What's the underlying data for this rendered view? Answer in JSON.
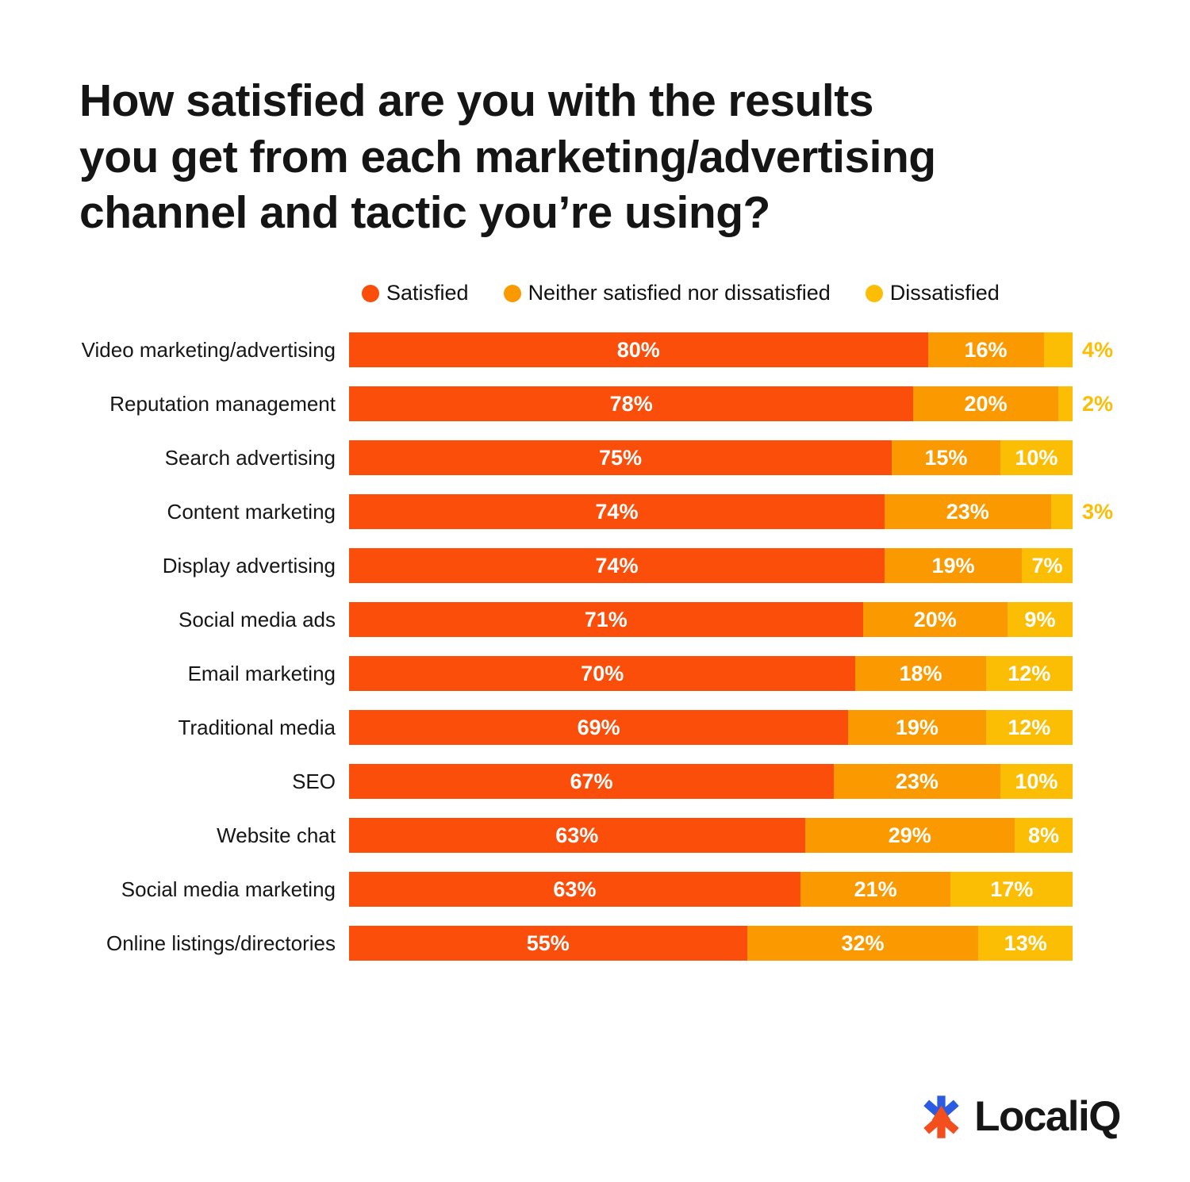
{
  "header": {
    "title_lines": [
      "How satisfied are you with the results",
      "you get from each marketing/advertising",
      "channel and tactic you’re using?"
    ]
  },
  "colors": {
    "satisfied": "#FA4E0A",
    "neither": "#FB9901",
    "dissatisfied": "#FCBD05",
    "title_text": "#151515",
    "label_text": "#161616",
    "value_text": "#FFFFFF",
    "logo_blue": "#2B5BE2",
    "logo_orange": "#F24E1E"
  },
  "chart_data": {
    "type": "bar",
    "stacked": true,
    "orientation": "horizontal",
    "title": "How satisfied are you with the results you get from each marketing/advertising channel and tactic you're using?",
    "value_suffix": "%",
    "legend_position": "top",
    "grid": false,
    "xlim": [
      0,
      100
    ],
    "categories": [
      "Video marketing/advertising",
      "Reputation management",
      "Search advertising",
      "Content marketing",
      "Display advertising",
      "Social media ads",
      "Email marketing",
      "Traditional media",
      "SEO",
      "Website chat",
      "Social media marketing",
      "Online listings/directories"
    ],
    "series": [
      {
        "name": "Satisfied",
        "key": "satisfied",
        "color": "#FA4E0A",
        "values": [
          80,
          78,
          75,
          74,
          74,
          71,
          70,
          69,
          67,
          63,
          63,
          55
        ]
      },
      {
        "name": "Neither satisfied nor dissatisfied",
        "key": "neither",
        "color": "#FB9901",
        "values": [
          16,
          20,
          15,
          23,
          19,
          20,
          18,
          19,
          23,
          29,
          21,
          32
        ]
      },
      {
        "name": "Dissatisfied",
        "key": "dissatisfied",
        "color": "#FCBD05",
        "values": [
          4,
          2,
          10,
          3,
          7,
          9,
          12,
          12,
          10,
          8,
          17,
          13
        ]
      }
    ]
  },
  "footer": {
    "brand": "LocaliQ"
  }
}
